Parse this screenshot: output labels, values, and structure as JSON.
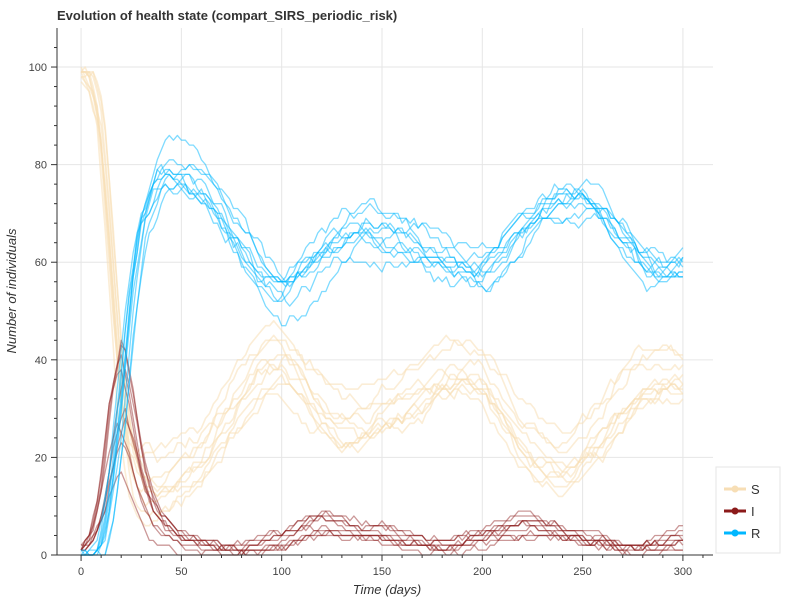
{
  "chart_data": {
    "type": "line",
    "title": "Evolution of health state (compart_SIRS_periodic_risk)",
    "xlabel": "Time (days)",
    "ylabel": "Number of individuals",
    "xlim": [
      -12,
      315
    ],
    "ylim": [
      0,
      108
    ],
    "xticks": [
      0,
      50,
      100,
      150,
      200,
      250,
      300
    ],
    "yticks": [
      0,
      20,
      40,
      60,
      80,
      100
    ],
    "grid": true,
    "legend_position": "bottom-right",
    "run_count": 10,
    "series": [
      {
        "name": "S",
        "color": "#f7deb5",
        "x": [
          0,
          5,
          10,
          15,
          20,
          25,
          30,
          40,
          50,
          60,
          70,
          80,
          90,
          100,
          110,
          120,
          130,
          140,
          150,
          160,
          170,
          180,
          190,
          200,
          210,
          220,
          230,
          240,
          250,
          260,
          270,
          280,
          290,
          300
        ],
        "values": [
          99,
          97,
          88,
          62,
          35,
          20,
          15,
          14,
          17,
          21,
          27,
          33,
          39,
          41,
          36,
          31,
          28,
          27,
          29,
          31,
          33,
          36,
          38,
          37,
          31,
          25,
          21,
          19,
          22,
          26,
          31,
          35,
          37,
          36
        ]
      },
      {
        "name": "I",
        "color": "#8b1a1a",
        "x": [
          0,
          5,
          10,
          15,
          20,
          25,
          30,
          35,
          40,
          50,
          60,
          70,
          80,
          90,
          100,
          110,
          120,
          130,
          140,
          150,
          160,
          170,
          180,
          190,
          200,
          210,
          220,
          230,
          240,
          250,
          260,
          270,
          280,
          290,
          300
        ],
        "values": [
          1,
          3,
          10,
          24,
          32,
          25,
          15,
          9,
          6,
          3,
          2,
          1,
          1,
          2,
          3,
          5,
          6,
          5,
          4,
          4,
          3,
          2,
          2,
          3,
          4,
          5,
          6,
          5,
          4,
          3,
          2,
          1,
          1,
          2,
          3
        ]
      },
      {
        "name": "R",
        "color": "#00b7ff",
        "x": [
          0,
          5,
          10,
          15,
          20,
          25,
          30,
          40,
          50,
          60,
          70,
          80,
          90,
          100,
          110,
          120,
          130,
          140,
          150,
          160,
          170,
          180,
          190,
          200,
          210,
          220,
          230,
          240,
          250,
          260,
          270,
          280,
          290,
          300
        ],
        "values": [
          0,
          0,
          2,
          14,
          33,
          55,
          70,
          80,
          80,
          78,
          72,
          66,
          59,
          56,
          59,
          63,
          66,
          68,
          67,
          66,
          64,
          62,
          60,
          60,
          64,
          69,
          72,
          75,
          75,
          72,
          67,
          62,
          60,
          61
        ]
      }
    ]
  }
}
